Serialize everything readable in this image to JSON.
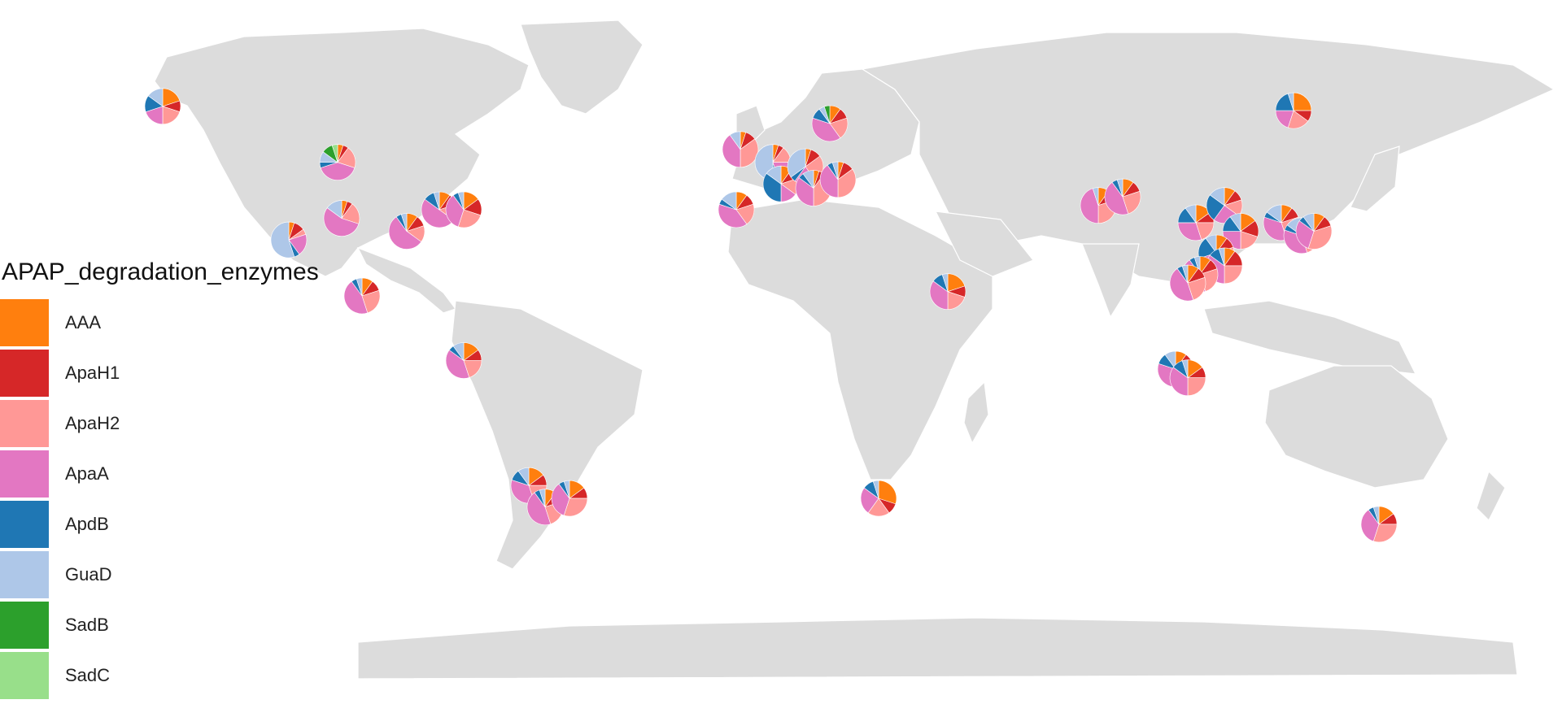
{
  "colors": {
    "land": "#dcdcdc",
    "background": "#ffffff"
  },
  "legend": {
    "title": "APAP_degradation_enzymes",
    "items": [
      {
        "label": "AAA",
        "color": "#ff7f0e"
      },
      {
        "label": "ApaH1",
        "color": "#d62728"
      },
      {
        "label": "ApaH2",
        "color": "#ff9896"
      },
      {
        "label": "ApaA",
        "color": "#e377c2"
      },
      {
        "label": "ApdB",
        "color": "#1f77b4"
      },
      {
        "label": "GuaD",
        "color": "#aec7e8"
      },
      {
        "label": "SadB",
        "color": "#2ca02c"
      },
      {
        "label": "SadC",
        "color": "#98df8a"
      }
    ]
  },
  "chart_data": {
    "type": "pie-map",
    "categories": [
      "AAA",
      "ApaH1",
      "ApaH2",
      "ApaA",
      "ApdB",
      "GuaD",
      "SadB",
      "SadC"
    ],
    "sites": [
      {
        "lon": -148,
        "lat": 64,
        "values": [
          20,
          10,
          20,
          20,
          15,
          15,
          0,
          0
        ]
      },
      {
        "lon": -105,
        "lat": 51,
        "values": [
          5,
          5,
          20,
          40,
          5,
          10,
          10,
          5
        ]
      },
      {
        "lon": -117,
        "lat": 33,
        "values": [
          5,
          10,
          5,
          20,
          5,
          55,
          0,
          0
        ]
      },
      {
        "lon": -104,
        "lat": 38,
        "values": [
          5,
          5,
          20,
          55,
          0,
          15,
          0,
          0
        ]
      },
      {
        "lon": -88,
        "lat": 35,
        "values": [
          10,
          10,
          15,
          55,
          5,
          5,
          0,
          0
        ]
      },
      {
        "lon": -80,
        "lat": 40,
        "values": [
          10,
          10,
          15,
          50,
          10,
          5,
          0,
          0
        ]
      },
      {
        "lon": -74,
        "lat": 40,
        "values": [
          15,
          15,
          25,
          35,
          5,
          5,
          0,
          0
        ]
      },
      {
        "lon": -99,
        "lat": 20,
        "values": [
          10,
          10,
          25,
          45,
          5,
          5,
          0,
          0
        ]
      },
      {
        "lon": -74,
        "lat": 5,
        "values": [
          15,
          10,
          20,
          40,
          5,
          10,
          0,
          0
        ]
      },
      {
        "lon": -58,
        "lat": -24,
        "values": [
          15,
          10,
          20,
          35,
          10,
          10,
          0,
          0
        ]
      },
      {
        "lon": -54,
        "lat": -29,
        "values": [
          10,
          10,
          25,
          45,
          5,
          5,
          0,
          0
        ]
      },
      {
        "lon": -48,
        "lat": -27,
        "values": [
          15,
          10,
          30,
          35,
          5,
          5,
          0,
          0
        ]
      },
      {
        "lon": -6,
        "lat": 54,
        "values": [
          5,
          10,
          35,
          40,
          0,
          10,
          0,
          0
        ]
      },
      {
        "lon": -7,
        "lat": 40,
        "values": [
          10,
          10,
          20,
          40,
          5,
          15,
          0,
          0
        ]
      },
      {
        "lon": 2,
        "lat": 51,
        "values": [
          5,
          5,
          15,
          20,
          5,
          50,
          0,
          0
        ]
      },
      {
        "lon": 4,
        "lat": 46,
        "values": [
          10,
          10,
          15,
          15,
          35,
          15,
          0,
          0
        ]
      },
      {
        "lon": 10,
        "lat": 50,
        "values": [
          5,
          10,
          25,
          20,
          5,
          35,
          0,
          0
        ]
      },
      {
        "lon": 12,
        "lat": 45,
        "values": [
          5,
          5,
          40,
          35,
          5,
          10,
          0,
          0
        ]
      },
      {
        "lon": 18,
        "lat": 47,
        "values": [
          5,
          10,
          35,
          40,
          5,
          5,
          0,
          0
        ]
      },
      {
        "lon": 16,
        "lat": 60,
        "values": [
          10,
          10,
          20,
          40,
          10,
          5,
          5,
          0
        ]
      },
      {
        "lon": 45,
        "lat": 21,
        "values": [
          20,
          10,
          20,
          35,
          10,
          5,
          0,
          0
        ]
      },
      {
        "lon": 28,
        "lat": -27,
        "values": [
          30,
          10,
          20,
          25,
          10,
          5,
          0,
          0
        ]
      },
      {
        "lon": 82,
        "lat": 41,
        "values": [
          10,
          10,
          30,
          45,
          0,
          5,
          0,
          0
        ]
      },
      {
        "lon": 88,
        "lat": 43,
        "values": [
          10,
          10,
          25,
          45,
          5,
          5,
          0,
          0
        ]
      },
      {
        "lon": 106,
        "lat": 37,
        "values": [
          15,
          10,
          20,
          30,
          15,
          10,
          0,
          0
        ]
      },
      {
        "lon": 113,
        "lat": 41,
        "values": [
          10,
          10,
          15,
          25,
          25,
          15,
          0,
          0
        ]
      },
      {
        "lon": 117,
        "lat": 35,
        "values": [
          15,
          15,
          20,
          25,
          15,
          10,
          0,
          0
        ]
      },
      {
        "lon": 111,
        "lat": 30,
        "values": [
          10,
          10,
          20,
          30,
          20,
          10,
          0,
          0
        ]
      },
      {
        "lon": 113,
        "lat": 27,
        "values": [
          10,
          15,
          25,
          35,
          10,
          5,
          0,
          0
        ]
      },
      {
        "lon": 107,
        "lat": 25,
        "values": [
          10,
          10,
          25,
          45,
          5,
          5,
          0,
          0
        ]
      },
      {
        "lon": 104,
        "lat": 23,
        "values": [
          10,
          10,
          25,
          45,
          5,
          5,
          0,
          0
        ]
      },
      {
        "lon": 127,
        "lat": 37,
        "values": [
          10,
          10,
          25,
          35,
          5,
          15,
          0,
          0
        ]
      },
      {
        "lon": 132,
        "lat": 34,
        "values": [
          10,
          10,
          25,
          35,
          5,
          15,
          0,
          0
        ]
      },
      {
        "lon": 135,
        "lat": 35,
        "values": [
          10,
          10,
          35,
          30,
          5,
          10,
          0,
          0
        ]
      },
      {
        "lon": 101,
        "lat": 3,
        "values": [
          10,
          10,
          20,
          40,
          10,
          10,
          0,
          0
        ]
      },
      {
        "lon": 104,
        "lat": 1,
        "values": [
          15,
          10,
          25,
          35,
          10,
          5,
          0,
          0
        ]
      },
      {
        "lon": 130,
        "lat": 63,
        "values": [
          25,
          10,
          20,
          20,
          20,
          5,
          0,
          0
        ]
      },
      {
        "lon": 151,
        "lat": -33,
        "values": [
          15,
          10,
          30,
          35,
          5,
          5,
          0,
          0
        ]
      }
    ]
  }
}
